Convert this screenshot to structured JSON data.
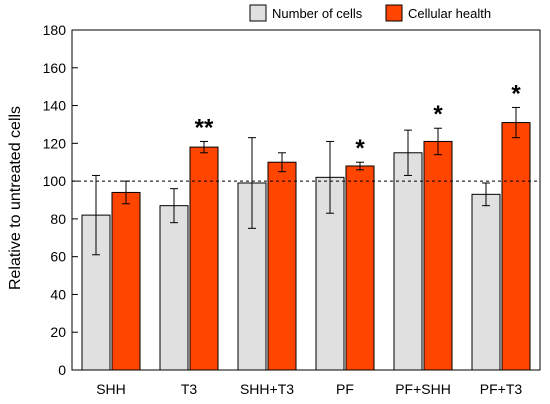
{
  "chart_data": {
    "type": "bar",
    "categories": [
      "SHH",
      "T3",
      "SHH+T3",
      "PF",
      "PF+SHH",
      "PF+T3"
    ],
    "series": [
      {
        "name": "Number of cells",
        "color": "#e0e0e0",
        "values": [
          82,
          87,
          99,
          102,
          115,
          93
        ],
        "errors": [
          21,
          9,
          24,
          19,
          12,
          6
        ]
      },
      {
        "name": "Cellular health",
        "color": "#ff4500",
        "values": [
          94,
          118,
          110,
          108,
          121,
          131
        ],
        "errors": [
          6,
          3,
          5,
          2,
          7,
          8
        ]
      }
    ],
    "significance": [
      "",
      "**",
      "",
      "*",
      "*",
      "*"
    ],
    "reference_line": 100,
    "ylabel": "Relative to untreated cells",
    "xlabel": "",
    "ylim": [
      0,
      180
    ],
    "yticks": [
      0,
      20,
      40,
      60,
      80,
      100,
      120,
      140,
      160,
      180
    ],
    "legend_position": "top-right",
    "grid": false
  }
}
